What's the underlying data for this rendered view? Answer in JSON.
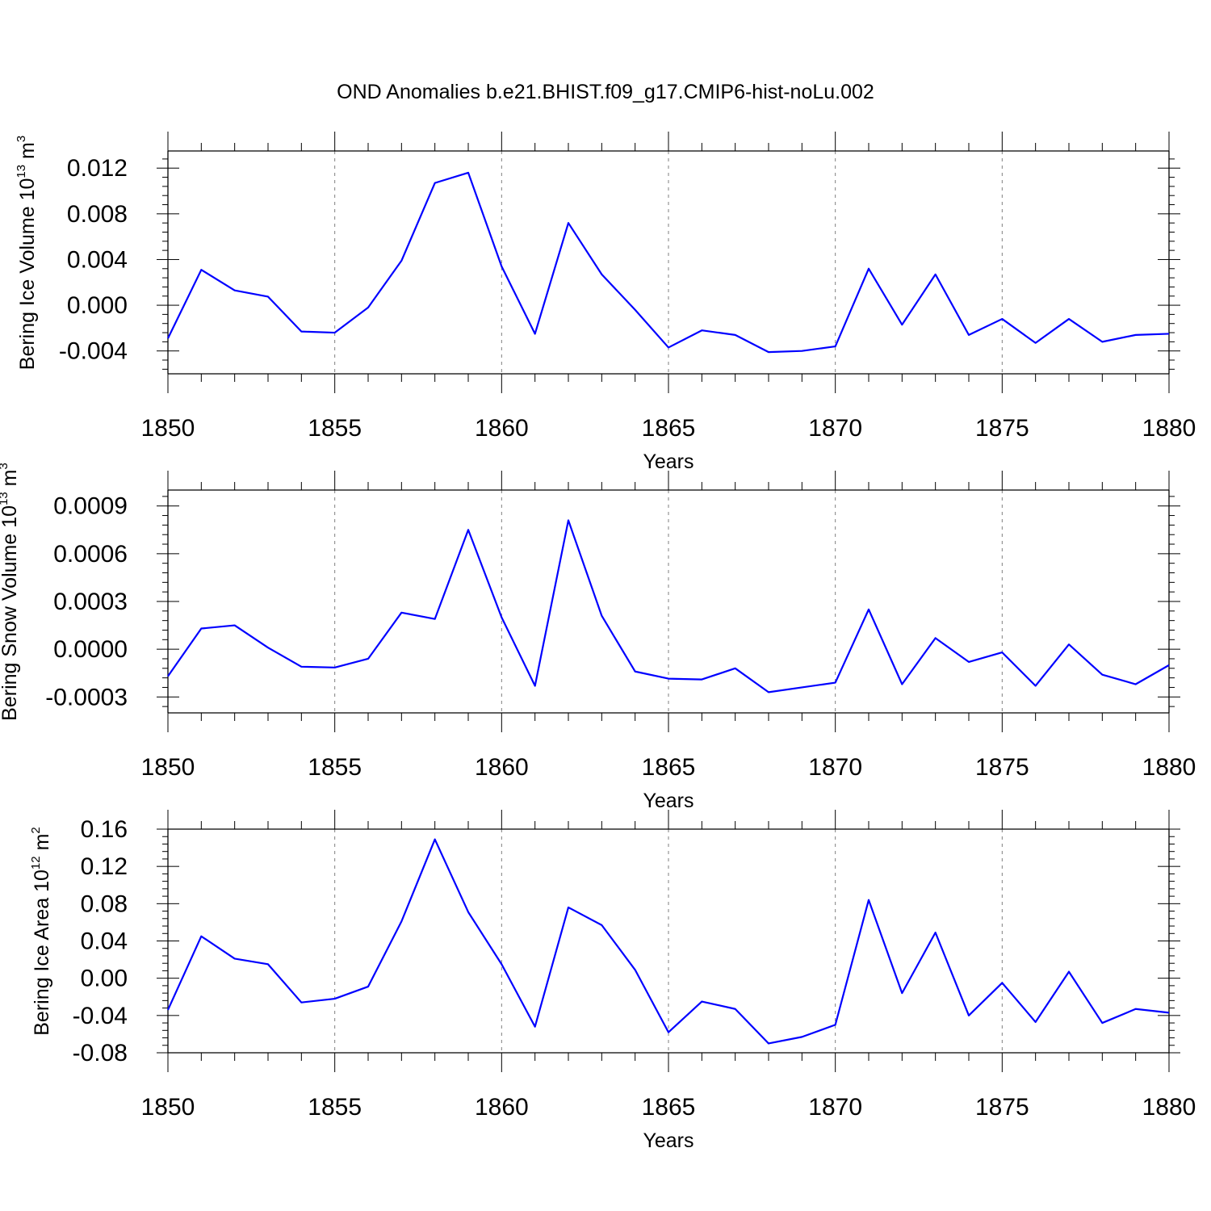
{
  "title": "OND Anomalies b.e21.BHIST.f09_g17.CMIP6-hist-noLu.002",
  "colors": {
    "series": "#0000ff",
    "axis": "#000000",
    "grid": "#7f7f7f"
  },
  "chart_data": [
    {
      "type": "line",
      "title": "OND Anomalies b.e21.BHIST.f09_g17.CMIP6-hist-noLu.002",
      "xlabel": "Years",
      "ylabel": {
        "main": "Bering Ice Volume 10",
        "sup": "13",
        "unit": " m",
        "unit_sup": "3"
      },
      "xlim": [
        1850,
        1880
      ],
      "xticks": [
        1850,
        1855,
        1860,
        1865,
        1870,
        1875,
        1880
      ],
      "ylim": [
        -0.006,
        0.0135
      ],
      "yticks": [
        -0.004,
        0.0,
        0.004,
        0.008,
        0.012
      ],
      "ytick_labels": [
        "-0.004",
        "0.000",
        "0.004",
        "0.008",
        "0.012"
      ],
      "grid": "vertical dashed at major x ticks",
      "series": [
        {
          "name": "Bering Ice Volume",
          "x": [
            1850,
            1851,
            1852,
            1853,
            1854,
            1855,
            1856,
            1857,
            1858,
            1859,
            1860,
            1861,
            1862,
            1863,
            1864,
            1865,
            1866,
            1867,
            1868,
            1869,
            1870,
            1871,
            1872,
            1873,
            1874,
            1875,
            1876,
            1877,
            1878,
            1879,
            1880
          ],
          "values": [
            -0.0029,
            0.0031,
            0.0013,
            0.00075,
            -0.0023,
            -0.0024,
            -0.0002,
            0.0039,
            0.0107,
            0.0116,
            0.0034,
            -0.0025,
            0.0072,
            0.0027,
            -0.0004,
            -0.0037,
            -0.0022,
            -0.0026,
            -0.0041,
            -0.004,
            -0.0036,
            0.0032,
            -0.0017,
            0.0027,
            -0.0026,
            -0.0012,
            -0.0033,
            -0.0012,
            -0.0032,
            -0.0026,
            -0.0025
          ]
        }
      ]
    },
    {
      "type": "line",
      "xlabel": "Years",
      "ylabel": {
        "main": "Bering Snow Volume 10",
        "sup": "13",
        "unit": " m",
        "unit_sup": "3"
      },
      "xlim": [
        1850,
        1880
      ],
      "xticks": [
        1850,
        1855,
        1860,
        1865,
        1870,
        1875,
        1880
      ],
      "ylim": [
        -0.0004,
        0.001
      ],
      "yticks": [
        -0.0003,
        0.0,
        0.0003,
        0.0006,
        0.0009
      ],
      "ytick_labels": [
        "-0.0003",
        "0.0000",
        "0.0003",
        "0.0006",
        "0.0009"
      ],
      "grid": "vertical dashed at major x ticks",
      "series": [
        {
          "name": "Bering Snow Volume",
          "x": [
            1850,
            1851,
            1852,
            1853,
            1854,
            1855,
            1856,
            1857,
            1858,
            1859,
            1860,
            1861,
            1862,
            1863,
            1864,
            1865,
            1866,
            1867,
            1868,
            1869,
            1870,
            1871,
            1872,
            1873,
            1874,
            1875,
            1876,
            1877,
            1878,
            1879,
            1880
          ],
          "values": [
            -0.00017,
            0.00013,
            0.00015,
            1e-05,
            -0.00011,
            -0.000115,
            -6e-05,
            0.00023,
            0.00019,
            0.00075,
            0.0002,
            -0.00023,
            0.00081,
            0.00021,
            -0.00014,
            -0.000185,
            -0.00019,
            -0.00012,
            -0.00027,
            -0.00024,
            -0.00021,
            0.00025,
            -0.00022,
            7e-05,
            -8e-05,
            -2e-05,
            -0.00023,
            3e-05,
            -0.00016,
            -0.00022,
            -0.0001
          ]
        }
      ]
    },
    {
      "type": "line",
      "xlabel": "Years",
      "ylabel": {
        "main": "Bering Ice Area 10",
        "sup": "12",
        "unit": " m",
        "unit_sup": "2"
      },
      "xlim": [
        1850,
        1880
      ],
      "xticks": [
        1850,
        1855,
        1860,
        1865,
        1870,
        1875,
        1880
      ],
      "ylim": [
        -0.08,
        0.16
      ],
      "yticks": [
        -0.08,
        -0.04,
        0.0,
        0.04,
        0.08,
        0.12,
        0.16
      ],
      "ytick_labels": [
        "-0.08",
        "-0.04",
        "0.00",
        "0.04",
        "0.08",
        "0.12",
        "0.16"
      ],
      "grid": "vertical dashed at major x ticks",
      "series": [
        {
          "name": "Bering Ice Area",
          "x": [
            1850,
            1851,
            1852,
            1853,
            1854,
            1855,
            1856,
            1857,
            1858,
            1859,
            1860,
            1861,
            1862,
            1863,
            1864,
            1865,
            1866,
            1867,
            1868,
            1869,
            1870,
            1871,
            1872,
            1873,
            1874,
            1875,
            1876,
            1877,
            1878,
            1879,
            1880
          ],
          "values": [
            -0.034,
            0.045,
            0.021,
            0.015,
            -0.026,
            -0.022,
            -0.009,
            0.061,
            0.149,
            0.071,
            0.015,
            -0.052,
            0.076,
            0.057,
            0.009,
            -0.058,
            -0.025,
            -0.033,
            -0.07,
            -0.063,
            -0.05,
            0.084,
            -0.016,
            0.049,
            -0.04,
            -0.005,
            -0.047,
            0.007,
            -0.048,
            -0.033,
            -0.037
          ]
        }
      ]
    }
  ]
}
